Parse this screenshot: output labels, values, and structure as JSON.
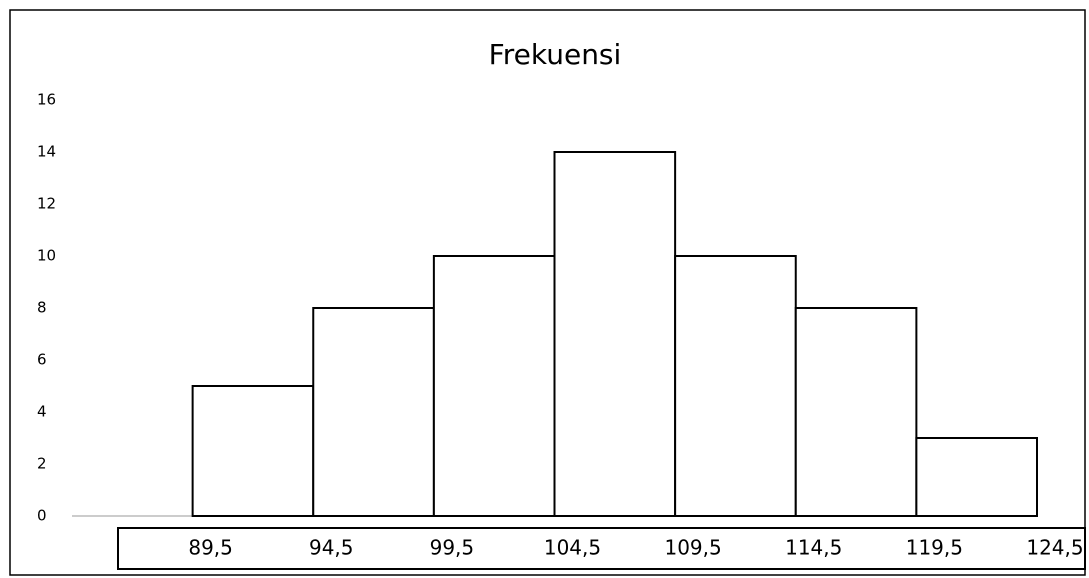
{
  "chart_data": {
    "type": "histogram",
    "title": "Frekuensi",
    "bins": [
      89.5,
      94.5,
      99.5,
      104.5,
      109.5,
      114.5,
      119.5,
      124.5
    ],
    "counts": [
      5,
      8,
      10,
      14,
      10,
      8,
      3
    ],
    "color": "#ffffff",
    "edge_color": "#000000",
    "xlim": [
      84.5,
      124.5
    ],
    "xticks": [
      {
        "value": 89.5,
        "label": "89,5"
      },
      {
        "value": 94.5,
        "label": "94,5"
      },
      {
        "value": 99.5,
        "label": "99,5"
      },
      {
        "value": 104.5,
        "label": "104,5"
      },
      {
        "value": 109.5,
        "label": "109,5"
      },
      {
        "value": 114.5,
        "label": "114,5"
      },
      {
        "value": 119.5,
        "label": "119,5"
      },
      {
        "value": 124.5,
        "label": "124,5"
      }
    ],
    "ylim": [
      0,
      16
    ],
    "yticks": [
      0,
      2,
      4,
      6,
      8,
      10,
      12,
      14,
      16
    ],
    "grid": false
  }
}
